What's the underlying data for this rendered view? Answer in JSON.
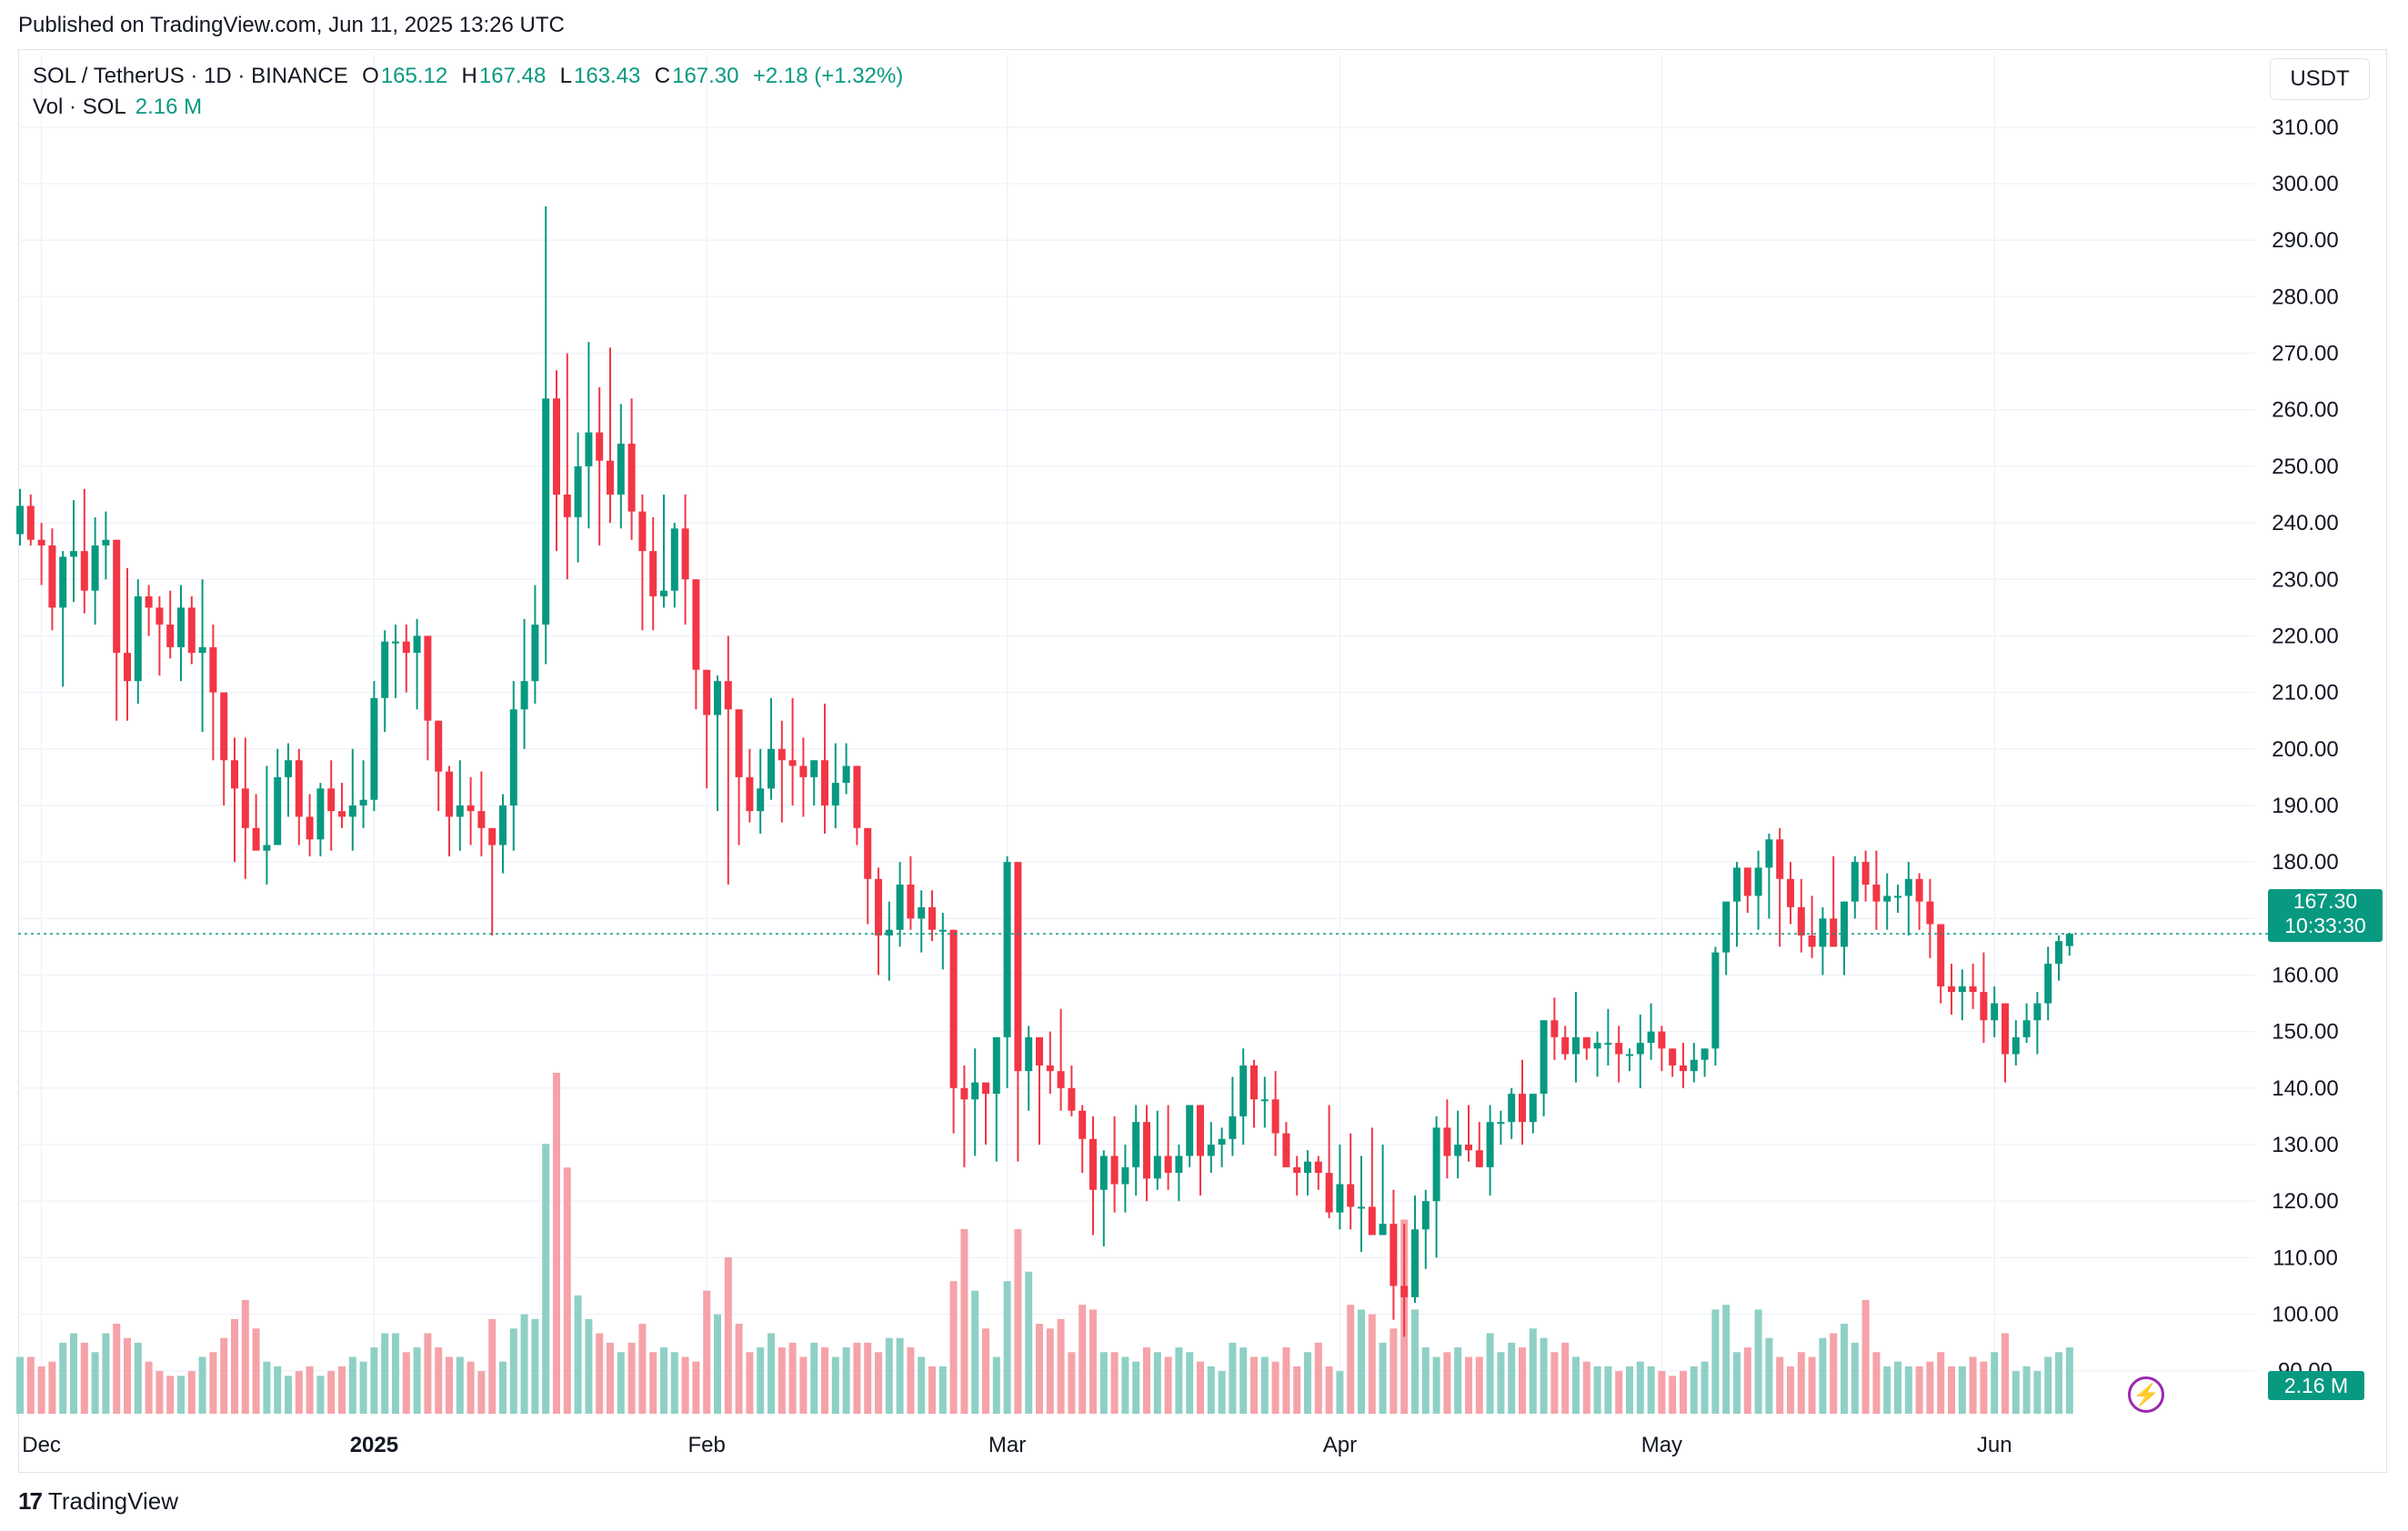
{
  "header": {
    "published": "Published on TradingView.com, Jun 11, 2025 13:26 UTC"
  },
  "legend": {
    "symbol": "SOL / TetherUS · 1D · BINANCE",
    "o_label": "O",
    "o_value": "165.12",
    "h_label": "H",
    "h_value": "167.48",
    "l_label": "L",
    "l_value": "163.43",
    "c_label": "C",
    "c_value": "167.30",
    "change": "+2.18 (+1.32%)",
    "vol_label": "Vol · SOL",
    "vol_value": "2.16 M"
  },
  "currency_button": "USDT",
  "last_price": {
    "price": "167.30",
    "countdown": "10:33:30"
  },
  "volume_label": "2.16 M",
  "footer": {
    "brand": "TradingView",
    "logo_icon": "tv-logo-icon"
  },
  "colors": {
    "up": "#089981",
    "down": "#f23645",
    "vol_up": "#8fd0c6",
    "vol_down": "#f5a3a8"
  },
  "chart_data": {
    "type": "candlestick",
    "y_axis": {
      "ticks": [
        90,
        100,
        110,
        120,
        130,
        140,
        150,
        160,
        170,
        180,
        190,
        200,
        210,
        220,
        230,
        240,
        250,
        260,
        270,
        280,
        290,
        300,
        310
      ],
      "range": [
        84,
        314
      ]
    },
    "x_axis": {
      "labels": [
        {
          "text": "Dec",
          "index": 2
        },
        {
          "text": "2025",
          "index": 33
        },
        {
          "text": "Feb",
          "index": 64
        },
        {
          "text": "Mar",
          "index": 92
        },
        {
          "text": "Apr",
          "index": 123
        },
        {
          "text": "May",
          "index": 153
        },
        {
          "text": "Jun",
          "index": 184
        }
      ]
    },
    "candles_ohlc": [
      [
        238,
        246,
        236,
        243
      ],
      [
        243,
        245,
        236,
        237
      ],
      [
        237,
        240,
        229,
        236
      ],
      [
        236,
        239,
        221,
        225
      ],
      [
        225,
        235,
        211,
        234
      ],
      [
        234,
        244,
        226,
        235
      ],
      [
        235,
        246,
        224,
        228
      ],
      [
        228,
        241,
        222,
        236
      ],
      [
        236,
        242,
        230,
        237
      ],
      [
        237,
        236,
        205,
        217
      ],
      [
        217,
        232,
        205,
        212
      ],
      [
        212,
        230,
        208,
        227
      ],
      [
        227,
        229,
        220,
        225
      ],
      [
        225,
        227,
        213,
        222
      ],
      [
        222,
        228,
        216,
        218
      ],
      [
        218,
        229,
        212,
        225
      ],
      [
        225,
        227,
        215,
        217
      ],
      [
        217,
        230,
        203,
        218
      ],
      [
        218,
        222,
        198,
        210
      ],
      [
        210,
        204,
        190,
        198
      ],
      [
        198,
        202,
        180,
        193
      ],
      [
        193,
        202,
        177,
        186
      ],
      [
        186,
        192,
        183,
        182
      ],
      [
        182,
        197,
        176,
        183
      ],
      [
        183,
        200,
        186,
        195
      ],
      [
        195,
        201,
        188,
        198
      ],
      [
        198,
        200,
        183,
        188
      ],
      [
        188,
        192,
        181,
        184
      ],
      [
        184,
        194,
        181,
        193
      ],
      [
        193,
        198,
        182,
        189
      ],
      [
        189,
        194,
        186,
        188
      ],
      [
        188,
        200,
        182,
        190
      ],
      [
        190,
        198,
        186,
        191
      ],
      [
        191,
        212,
        189,
        209
      ],
      [
        209,
        221,
        203,
        219
      ],
      [
        219,
        222,
        209,
        219
      ],
      [
        219,
        222,
        210,
        217
      ],
      [
        217,
        223,
        207,
        220
      ],
      [
        220,
        218,
        198,
        205
      ],
      [
        205,
        203,
        189,
        196
      ],
      [
        196,
        197,
        181,
        188
      ],
      [
        188,
        198,
        182,
        190
      ],
      [
        190,
        195,
        183,
        189
      ],
      [
        189,
        196,
        181,
        186
      ],
      [
        186,
        180,
        167,
        183
      ],
      [
        183,
        192,
        178,
        190
      ],
      [
        190,
        212,
        182,
        207
      ],
      [
        207,
        223,
        200,
        212
      ],
      [
        212,
        229,
        208,
        222
      ],
      [
        222,
        296,
        215,
        262
      ],
      [
        262,
        267,
        235,
        245
      ],
      [
        245,
        270,
        230,
        241
      ],
      [
        241,
        256,
        233,
        250
      ],
      [
        250,
        272,
        239,
        256
      ],
      [
        256,
        264,
        236,
        251
      ],
      [
        251,
        271,
        240,
        245
      ],
      [
        245,
        261,
        239,
        254
      ],
      [
        254,
        262,
        237,
        242
      ],
      [
        242,
        245,
        221,
        235
      ],
      [
        235,
        241,
        221,
        227
      ],
      [
        227,
        245,
        225,
        228
      ],
      [
        228,
        240,
        225,
        239
      ],
      [
        239,
        245,
        222,
        230
      ],
      [
        230,
        230,
        207,
        214
      ],
      [
        214,
        209,
        193,
        206
      ],
      [
        206,
        213,
        189,
        212
      ],
      [
        212,
        220,
        176,
        207
      ],
      [
        207,
        201,
        183,
        195
      ],
      [
        195,
        200,
        187,
        189
      ],
      [
        189,
        200,
        185,
        193
      ],
      [
        193,
        209,
        191,
        200
      ],
      [
        200,
        205,
        187,
        198
      ],
      [
        198,
        209,
        190,
        197
      ],
      [
        197,
        202,
        188,
        195
      ],
      [
        195,
        198,
        190,
        198
      ],
      [
        198,
        208,
        185,
        190
      ],
      [
        190,
        201,
        186,
        194
      ],
      [
        194,
        201,
        192,
        197
      ],
      [
        197,
        193,
        183,
        186
      ],
      [
        186,
        181,
        169,
        177
      ],
      [
        177,
        179,
        160,
        167
      ],
      [
        167,
        173,
        159,
        168
      ],
      [
        168,
        180,
        165,
        176
      ],
      [
        176,
        181,
        168,
        170
      ],
      [
        170,
        175,
        164,
        172
      ],
      [
        172,
        175,
        166,
        168
      ],
      [
        168,
        171,
        161,
        168
      ],
      [
        168,
        143,
        132,
        140
      ],
      [
        140,
        144,
        126,
        138
      ],
      [
        138,
        147,
        128,
        141
      ],
      [
        141,
        137,
        130,
        139
      ],
      [
        139,
        149,
        127,
        149
      ],
      [
        149,
        181,
        140,
        180
      ],
      [
        180,
        179,
        127,
        143
      ],
      [
        143,
        151,
        136,
        149
      ],
      [
        149,
        148,
        130,
        144
      ],
      [
        144,
        150,
        139,
        143
      ],
      [
        143,
        154,
        136,
        140
      ],
      [
        140,
        144,
        135,
        136
      ],
      [
        136,
        137,
        125,
        131
      ],
      [
        131,
        135,
        114,
        122
      ],
      [
        122,
        129,
        112,
        128
      ],
      [
        128,
        135,
        118,
        123
      ],
      [
        123,
        130,
        118,
        126
      ],
      [
        126,
        137,
        121,
        134
      ],
      [
        134,
        137,
        120,
        124
      ],
      [
        124,
        136,
        122,
        128
      ],
      [
        128,
        137,
        122,
        125
      ],
      [
        125,
        130,
        120,
        128
      ],
      [
        128,
        136,
        126,
        137
      ],
      [
        137,
        136,
        121,
        128
      ],
      [
        128,
        134,
        125,
        130
      ],
      [
        130,
        133,
        126,
        131
      ],
      [
        131,
        142,
        128,
        135
      ],
      [
        135,
        147,
        130,
        144
      ],
      [
        144,
        145,
        133,
        138
      ],
      [
        138,
        142,
        133,
        138
      ],
      [
        138,
        143,
        128,
        132
      ],
      [
        132,
        134,
        126,
        126
      ],
      [
        126,
        128,
        121,
        125
      ],
      [
        125,
        129,
        121,
        127
      ],
      [
        127,
        128,
        122,
        125
      ],
      [
        125,
        137,
        117,
        118
      ],
      [
        118,
        130,
        115,
        123
      ],
      [
        123,
        132,
        115,
        119
      ],
      [
        119,
        128,
        111,
        119
      ],
      [
        119,
        133,
        122,
        114
      ],
      [
        114,
        130,
        114,
        116
      ],
      [
        116,
        122,
        99,
        105
      ],
      [
        105,
        116,
        96,
        103
      ],
      [
        103,
        121,
        102,
        115
      ],
      [
        115,
        122,
        108,
        120
      ],
      [
        120,
        135,
        110,
        133
      ],
      [
        133,
        138,
        124,
        128
      ],
      [
        128,
        136,
        124,
        130
      ],
      [
        130,
        137,
        127,
        129
      ],
      [
        129,
        134,
        126,
        126
      ],
      [
        126,
        137,
        121,
        134
      ],
      [
        134,
        136,
        130,
        134
      ],
      [
        134,
        140,
        131,
        139
      ],
      [
        139,
        145,
        130,
        134
      ],
      [
        134,
        137,
        132,
        139
      ],
      [
        139,
        147,
        135,
        152
      ],
      [
        152,
        156,
        145,
        149
      ],
      [
        149,
        151,
        145,
        146
      ],
      [
        146,
        157,
        141,
        149
      ],
      [
        149,
        149,
        145,
        147
      ],
      [
        147,
        150,
        142,
        148
      ],
      [
        148,
        154,
        144,
        148
      ],
      [
        148,
        151,
        141,
        146
      ],
      [
        146,
        147,
        143,
        146
      ],
      [
        146,
        153,
        140,
        148
      ],
      [
        148,
        155,
        145,
        150
      ],
      [
        150,
        151,
        143,
        147
      ],
      [
        147,
        146,
        142,
        144
      ],
      [
        144,
        148,
        140,
        143
      ],
      [
        143,
        148,
        141,
        145
      ],
      [
        145,
        147,
        142,
        147
      ],
      [
        147,
        165,
        144,
        164
      ],
      [
        164,
        171,
        160,
        173
      ],
      [
        173,
        180,
        165,
        179
      ],
      [
        179,
        179,
        171,
        174
      ],
      [
        174,
        182,
        168,
        179
      ],
      [
        179,
        185,
        170,
        184
      ],
      [
        184,
        186,
        165,
        177
      ],
      [
        177,
        180,
        169,
        172
      ],
      [
        172,
        177,
        164,
        167
      ],
      [
        167,
        174,
        163,
        165
      ],
      [
        165,
        172,
        160,
        170
      ],
      [
        170,
        181,
        167,
        165
      ],
      [
        165,
        170,
        160,
        173
      ],
      [
        173,
        181,
        170,
        180
      ],
      [
        180,
        182,
        173,
        176
      ],
      [
        176,
        182,
        168,
        173
      ],
      [
        173,
        178,
        168,
        174
      ],
      [
        174,
        176,
        171,
        174
      ],
      [
        174,
        180,
        167,
        177
      ],
      [
        177,
        178,
        168,
        173
      ],
      [
        173,
        177,
        163,
        169
      ],
      [
        169,
        165,
        155,
        158
      ],
      [
        158,
        162,
        153,
        157
      ],
      [
        157,
        161,
        152,
        158
      ],
      [
        158,
        162,
        154,
        157
      ],
      [
        157,
        164,
        148,
        152
      ],
      [
        152,
        158,
        149,
        155
      ],
      [
        155,
        151,
        141,
        146
      ],
      [
        146,
        152,
        144,
        149
      ],
      [
        149,
        155,
        148,
        152
      ],
      [
        152,
        157,
        146,
        155
      ],
      [
        155,
        165,
        152,
        162
      ],
      [
        162,
        167,
        159,
        166
      ],
      [
        165.12,
        167.48,
        163.43,
        167.3
      ]
    ],
    "volume": [
      12,
      12,
      10,
      11,
      15,
      17,
      15,
      13,
      17,
      19,
      16,
      15,
      11,
      9,
      8,
      8,
      9,
      12,
      13,
      16,
      20,
      24,
      18,
      11,
      10,
      8,
      9,
      10,
      8,
      9,
      10,
      12,
      11,
      14,
      17,
      17,
      13,
      14,
      17,
      14,
      12,
      12,
      11,
      9,
      20,
      11,
      18,
      21,
      20,
      57,
      72,
      52,
      25,
      20,
      17,
      15,
      13,
      15,
      19,
      13,
      14,
      13,
      12,
      11,
      26,
      21,
      33,
      19,
      13,
      14,
      17,
      14,
      15,
      12,
      15,
      14,
      12,
      14,
      15,
      15,
      13,
      16,
      16,
      14,
      12,
      10,
      10,
      28,
      39,
      26,
      18,
      12,
      28,
      39,
      30,
      19,
      18,
      20,
      13,
      23,
      22,
      13,
      13,
      12,
      11,
      14,
      13,
      12,
      14,
      13,
      11,
      10,
      9,
      15,
      14,
      12,
      12,
      11,
      14,
      10,
      13,
      15,
      10,
      9,
      23,
      22,
      21,
      15,
      18,
      41,
      22,
      14,
      12,
      13,
      14,
      12,
      12,
      17,
      13,
      15,
      14,
      18,
      16,
      13,
      15,
      12,
      11,
      10,
      10,
      9,
      10,
      11,
      10,
      9,
      8,
      9,
      10,
      11,
      22,
      23,
      13,
      14,
      22,
      16,
      12,
      10,
      13,
      12,
      16,
      17,
      19,
      15,
      24,
      13,
      10,
      11,
      10,
      10,
      11,
      13,
      10,
      10,
      12,
      11,
      13,
      17,
      9,
      10,
      9,
      12,
      13,
      14
    ]
  }
}
